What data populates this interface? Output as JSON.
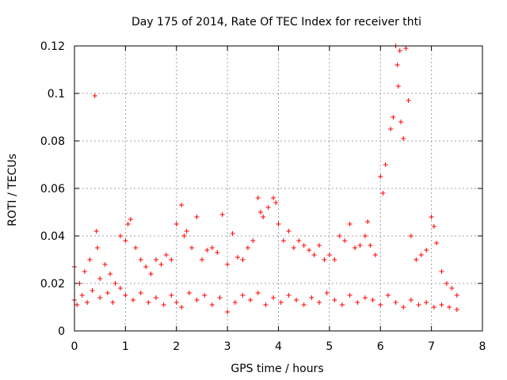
{
  "chart_data": {
    "type": "scatter",
    "title": "Day 175 of 2014, Rate Of TEC Index for receiver thti",
    "xlabel": "GPS time / hours",
    "ylabel": "ROTI / TECUs",
    "xlim": [
      0,
      8
    ],
    "ylim": [
      0,
      0.12
    ],
    "x_ticks": [
      0,
      1,
      2,
      3,
      4,
      5,
      6,
      7,
      8
    ],
    "y_ticks": [
      0,
      0.02,
      0.04,
      0.06,
      0.08,
      0.1,
      0.12
    ],
    "x_tick_labels": [
      "0",
      "1",
      "2",
      "3",
      "4",
      "5",
      "6",
      "7",
      "8"
    ],
    "y_tick_labels": [
      "0",
      "0.02",
      "0.04",
      "0.06",
      "0.08",
      "0.1",
      "0.12"
    ],
    "grid": true,
    "marker": "+",
    "series": [
      {
        "name": "ROTI",
        "color": "#ff0000",
        "x": [
          0.0,
          0.1,
          0.2,
          0.3,
          0.4,
          0.43,
          0.45,
          0.5,
          0.6,
          0.7,
          0.8,
          0.9,
          1.0,
          1.05,
          1.1,
          1.2,
          1.3,
          1.4,
          1.5,
          1.6,
          1.7,
          1.8,
          1.9,
          2.0,
          2.1,
          2.15,
          2.2,
          2.3,
          2.4,
          2.5,
          2.6,
          2.7,
          2.8,
          2.9,
          3.0,
          3.1,
          3.2,
          3.3,
          3.4,
          3.5,
          3.6,
          3.65,
          3.7,
          3.8,
          3.9,
          3.95,
          4.0,
          4.1,
          4.2,
          4.3,
          4.4,
          4.5,
          4.6,
          4.7,
          4.8,
          4.9,
          5.0,
          5.1,
          5.2,
          5.3,
          5.4,
          5.5,
          5.6,
          5.7,
          5.75,
          5.8,
          5.9,
          6.0,
          6.05,
          6.1,
          6.2,
          6.25,
          6.3,
          6.33,
          6.35,
          6.38,
          6.4,
          6.45,
          6.5,
          6.55,
          6.6,
          6.7,
          6.8,
          6.9,
          7.0,
          7.05,
          7.1,
          7.2,
          7.3,
          7.4,
          7.5
        ],
        "y": [
          0.027,
          0.02,
          0.025,
          0.03,
          0.099,
          0.042,
          0.035,
          0.022,
          0.028,
          0.024,
          0.02,
          0.04,
          0.038,
          0.045,
          0.047,
          0.035,
          0.03,
          0.027,
          0.024,
          0.03,
          0.028,
          0.032,
          0.03,
          0.045,
          0.053,
          0.04,
          0.042,
          0.035,
          0.048,
          0.03,
          0.034,
          0.035,
          0.033,
          0.049,
          0.028,
          0.041,
          0.031,
          0.03,
          0.035,
          0.038,
          0.056,
          0.05,
          0.048,
          0.052,
          0.056,
          0.054,
          0.045,
          0.038,
          0.042,
          0.035,
          0.038,
          0.036,
          0.034,
          0.032,
          0.036,
          0.03,
          0.032,
          0.03,
          0.04,
          0.038,
          0.045,
          0.035,
          0.036,
          0.04,
          0.046,
          0.036,
          0.032,
          0.065,
          0.058,
          0.07,
          0.085,
          0.09,
          0.12,
          0.112,
          0.103,
          0.118,
          0.088,
          0.081,
          0.119,
          0.097,
          0.04,
          0.03,
          0.032,
          0.034,
          0.048,
          0.044,
          0.037,
          0.025,
          0.02,
          0.018,
          0.015
        ]
      },
      {
        "name": "ROTI baseline",
        "color": "#ff0000",
        "x": [
          0.0,
          0.05,
          0.15,
          0.25,
          0.35,
          0.5,
          0.65,
          0.75,
          0.9,
          1.0,
          1.15,
          1.3,
          1.45,
          1.6,
          1.75,
          1.9,
          2.0,
          2.1,
          2.25,
          2.4,
          2.55,
          2.7,
          2.85,
          3.0,
          3.15,
          3.3,
          3.45,
          3.6,
          3.75,
          3.9,
          4.05,
          4.2,
          4.35,
          4.5,
          4.65,
          4.8,
          4.95,
          5.1,
          5.25,
          5.4,
          5.55,
          5.7,
          5.85,
          6.0,
          6.15,
          6.3,
          6.45,
          6.6,
          6.75,
          6.9,
          7.05,
          7.2,
          7.35,
          7.5
        ],
        "y": [
          0.013,
          0.011,
          0.015,
          0.012,
          0.017,
          0.014,
          0.016,
          0.012,
          0.018,
          0.015,
          0.013,
          0.016,
          0.012,
          0.014,
          0.011,
          0.015,
          0.012,
          0.01,
          0.016,
          0.013,
          0.015,
          0.011,
          0.014,
          0.008,
          0.012,
          0.015,
          0.013,
          0.016,
          0.011,
          0.014,
          0.012,
          0.015,
          0.013,
          0.011,
          0.014,
          0.012,
          0.016,
          0.013,
          0.011,
          0.015,
          0.012,
          0.014,
          0.013,
          0.011,
          0.015,
          0.012,
          0.01,
          0.013,
          0.011,
          0.012,
          0.01,
          0.011,
          0.01,
          0.009
        ]
      }
    ]
  }
}
